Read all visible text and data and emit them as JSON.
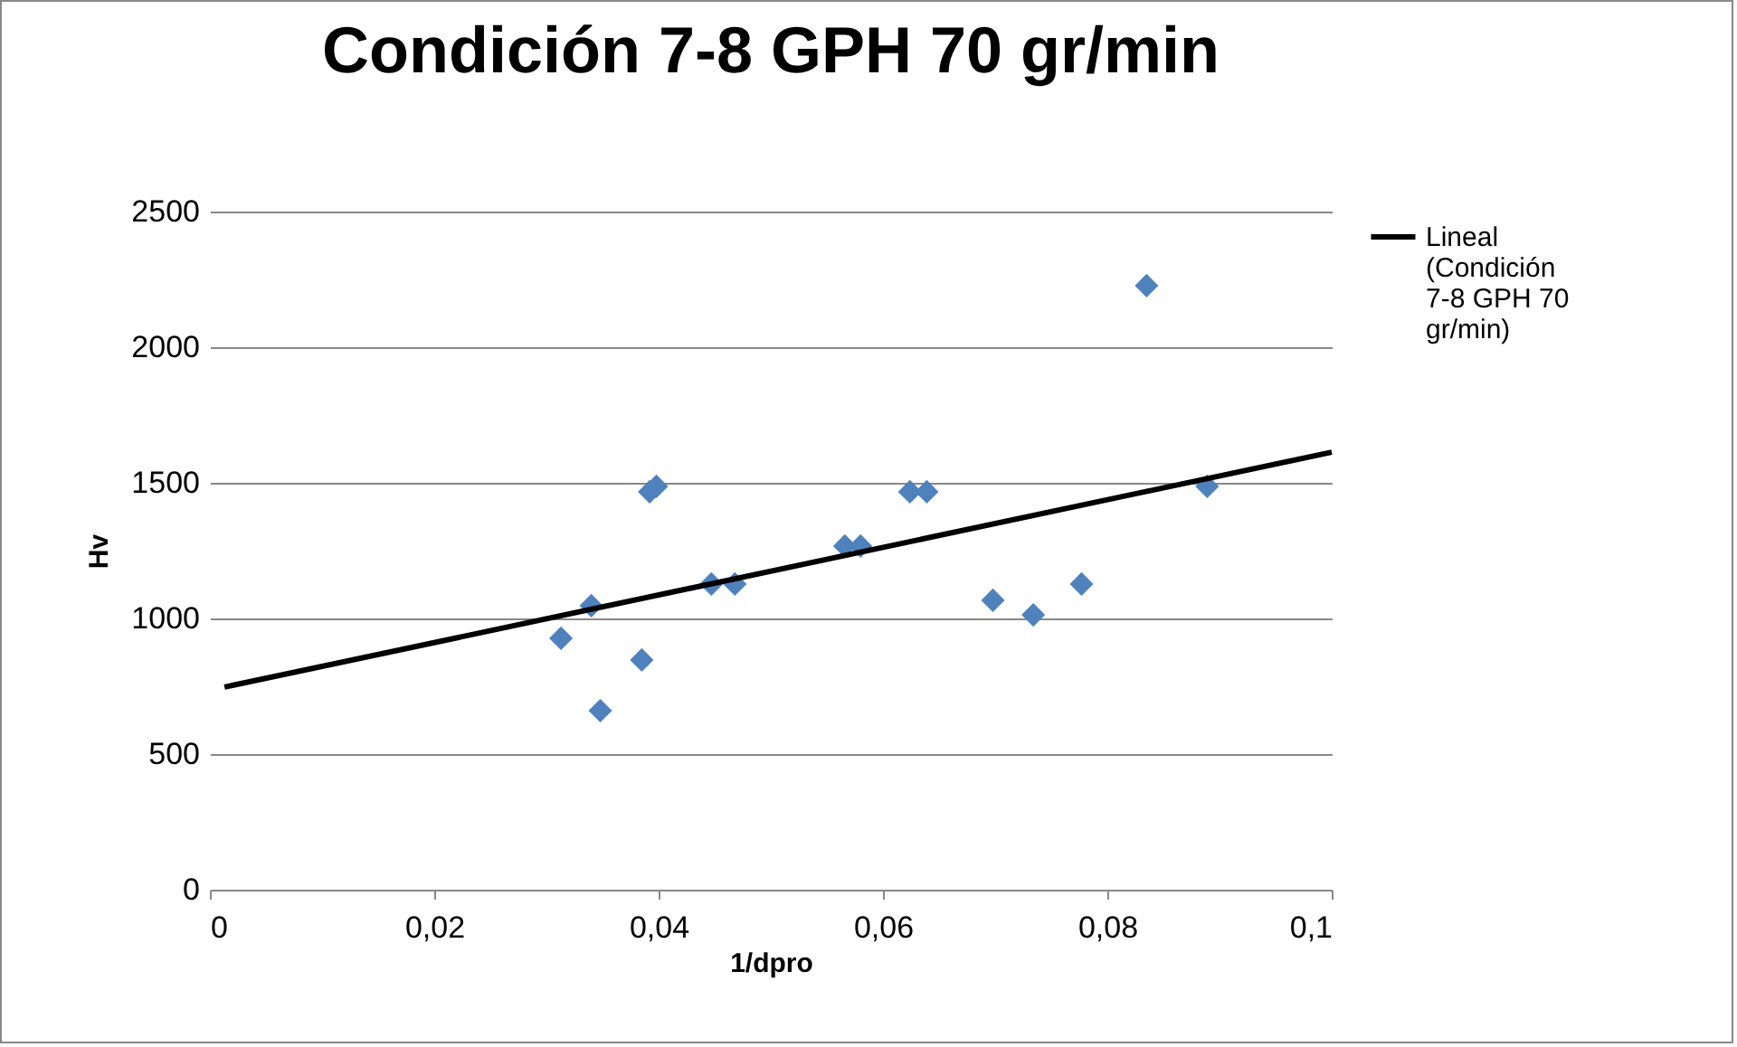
{
  "chart_data": {
    "type": "scatter",
    "title": "Condición 7-8 GPH 70 gr/min",
    "xlabel": "1/dpro",
    "ylabel": "Hv",
    "series": [
      {
        "color": "#4f81bd",
        "x": [
          0.0313,
          0.034,
          0.0348,
          0.0385,
          0.0392,
          0.0398,
          0.0447,
          0.0468,
          0.0566,
          0.058,
          0.0624,
          0.0639,
          0.0698,
          0.0734,
          0.0777,
          0.0835,
          0.0889
        ],
        "values": [
          927,
          1047,
          660,
          847,
          1467,
          1487,
          1127,
          1127,
          1267,
          1267,
          1467,
          1467,
          1067,
          1013,
          1127,
          2227,
          1487
        ]
      },
      {
        "type": "line",
        "name": "Lineal (Condición 7-8 GPH 70 gr/min)",
        "color": "#000000",
        "marker": "none",
        "x": [
          0.0013,
          0.1
        ],
        "values": [
          747,
          1613
        ]
      }
    ],
    "marker": "diamond",
    "xlim": [
      0,
      0.1
    ],
    "xticks": [
      0,
      {
        "value": 0.02,
        "label": "0,02"
      },
      {
        "value": 0.04,
        "label": "0,04"
      },
      {
        "value": 0.06,
        "label": "0,06"
      },
      {
        "value": 0.08,
        "label": "0,08"
      },
      {
        "value": 0.1,
        "label": "0,1"
      }
    ],
    "ylim": [
      0,
      2500
    ],
    "yticks": [
      0,
      500,
      1000,
      1500,
      2000,
      2500
    ],
    "grid": "y",
    "legend": "right"
  }
}
